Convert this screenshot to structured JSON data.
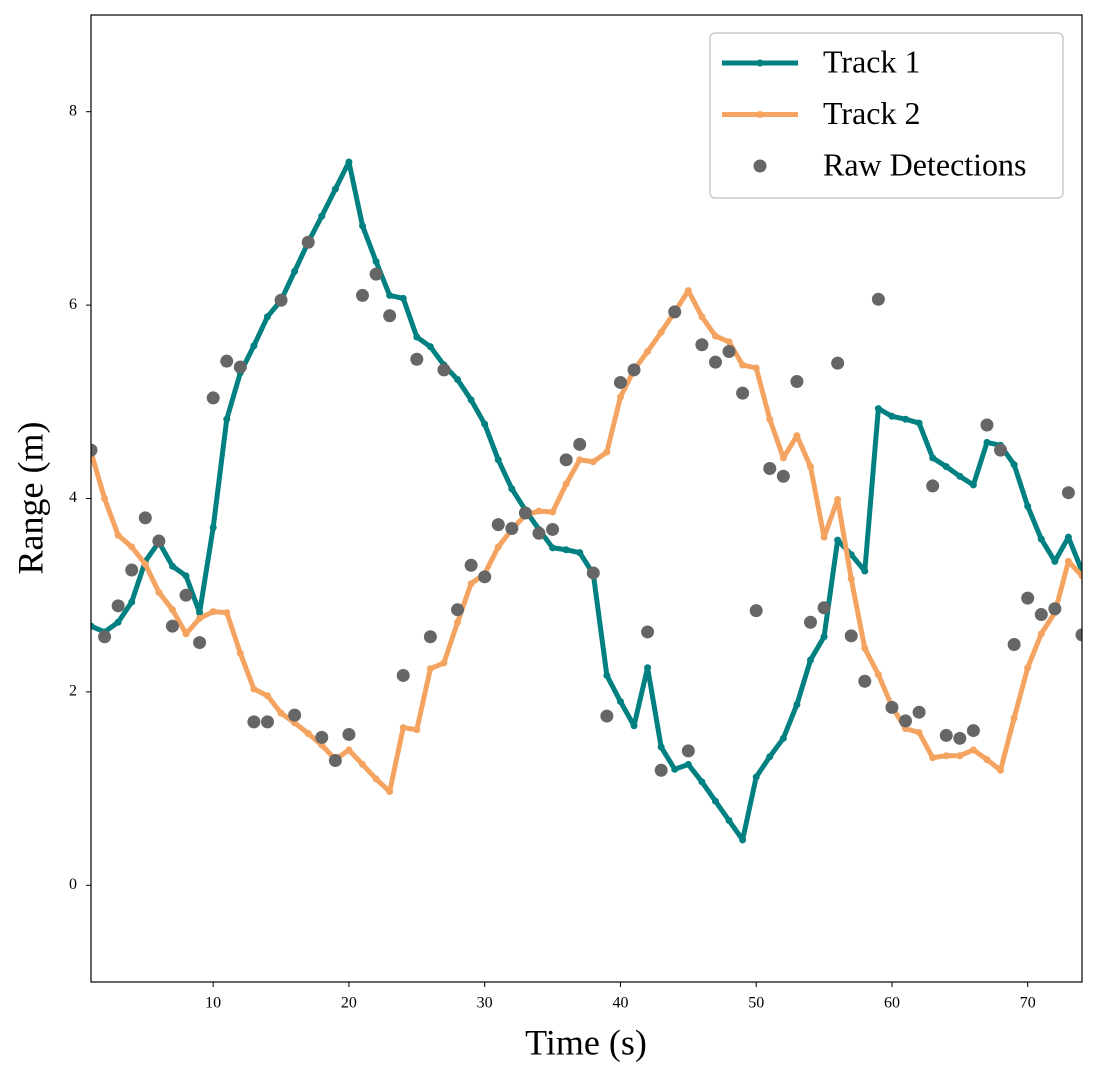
{
  "chart_data": {
    "type": "line",
    "xlabel": "Time (s)",
    "ylabel": "Range (m)",
    "x": [
      1,
      2,
      3,
      4,
      5,
      6,
      7,
      8,
      9,
      10,
      11,
      12,
      13,
      14,
      15,
      16,
      17,
      18,
      19,
      20,
      21,
      22,
      23,
      24,
      25,
      26,
      27,
      28,
      29,
      30,
      31,
      32,
      33,
      34,
      35,
      36,
      37,
      38,
      39,
      40,
      41,
      42,
      43,
      44,
      45,
      46,
      47,
      48,
      49,
      50,
      51,
      52,
      53,
      54,
      55,
      56,
      57,
      58,
      59,
      60,
      61,
      62,
      63,
      64,
      65,
      66,
      67,
      68,
      69,
      70,
      71,
      72,
      73,
      74
    ],
    "series": [
      {
        "name": "Track 1",
        "color": "#008080",
        "mode": "line",
        "values": [
          2.68,
          2.62,
          2.72,
          2.93,
          3.35,
          3.55,
          3.3,
          3.2,
          2.82,
          3.7,
          4.82,
          5.3,
          5.58,
          5.88,
          6.05,
          6.35,
          6.65,
          6.92,
          7.2,
          7.48,
          6.82,
          6.45,
          6.1,
          6.07,
          5.67,
          5.57,
          5.38,
          5.23,
          5.02,
          4.77,
          4.4,
          4.1,
          3.88,
          3.68,
          3.49,
          3.47,
          3.44,
          3.22,
          2.17,
          1.9,
          1.65,
          2.25,
          1.43,
          1.2,
          1.25,
          1.07,
          0.87,
          0.67,
          0.47,
          1.12,
          1.33,
          1.52,
          1.87,
          2.33,
          2.57,
          3.57,
          3.42,
          3.25,
          4.93,
          4.85,
          4.82,
          4.78,
          4.42,
          4.33,
          4.23,
          4.14,
          4.58,
          4.55,
          4.35,
          3.92,
          3.58,
          3.35,
          3.6,
          3.25
        ]
      },
      {
        "name": "Track 2",
        "color": "#f4a460",
        "mode": "line",
        "values": [
          4.48,
          4.0,
          3.62,
          3.5,
          3.32,
          3.03,
          2.85,
          2.6,
          2.76,
          2.83,
          2.82,
          2.4,
          2.03,
          1.96,
          1.78,
          1.68,
          1.57,
          1.45,
          1.3,
          1.4,
          1.25,
          1.1,
          0.97,
          1.63,
          1.61,
          2.24,
          2.3,
          2.72,
          3.12,
          3.22,
          3.5,
          3.68,
          3.83,
          3.87,
          3.86,
          4.15,
          4.4,
          4.38,
          4.48,
          5.05,
          5.33,
          5.52,
          5.72,
          5.93,
          6.15,
          5.88,
          5.68,
          5.62,
          5.38,
          5.35,
          4.82,
          4.42,
          4.65,
          4.33,
          3.6,
          3.99,
          3.17,
          2.45,
          2.18,
          1.85,
          1.62,
          1.58,
          1.32,
          1.34,
          1.34,
          1.4,
          1.3,
          1.19,
          1.73,
          2.25,
          2.6,
          2.82,
          3.35,
          3.2
        ]
      },
      {
        "name": "Raw Detections",
        "color": "#666666",
        "mode": "markers",
        "values": [
          4.5,
          2.57,
          2.89,
          3.26,
          3.8,
          3.56,
          2.68,
          3.0,
          2.51,
          5.04,
          5.42,
          5.36,
          1.69,
          1.69,
          6.05,
          1.76,
          6.65,
          1.53,
          1.29,
          1.56,
          6.1,
          6.32,
          5.89,
          2.17,
          5.44,
          2.57,
          5.33,
          2.85,
          3.31,
          3.19,
          3.73,
          3.69,
          3.85,
          3.64,
          3.68,
          4.4,
          4.56,
          3.23,
          1.75,
          5.2,
          5.33,
          2.62,
          1.19,
          5.93,
          1.39,
          5.59,
          5.41,
          5.52,
          5.09,
          2.84,
          4.31,
          4.23,
          5.21,
          2.72,
          2.87,
          5.4,
          2.58,
          2.11,
          6.06,
          1.84,
          1.7,
          1.79,
          4.13,
          1.55,
          1.52,
          1.6,
          4.76,
          4.5,
          2.49,
          2.97,
          2.8,
          2.86,
          4.06,
          2.59
        ]
      }
    ],
    "xlim": [
      1,
      74
    ],
    "ylim": [
      -1,
      9
    ],
    "xticks": [
      10,
      20,
      30,
      40,
      50,
      60,
      70
    ],
    "yticks": [
      0,
      2,
      4,
      6,
      8
    ],
    "grid": false,
    "legend": "upper right"
  }
}
